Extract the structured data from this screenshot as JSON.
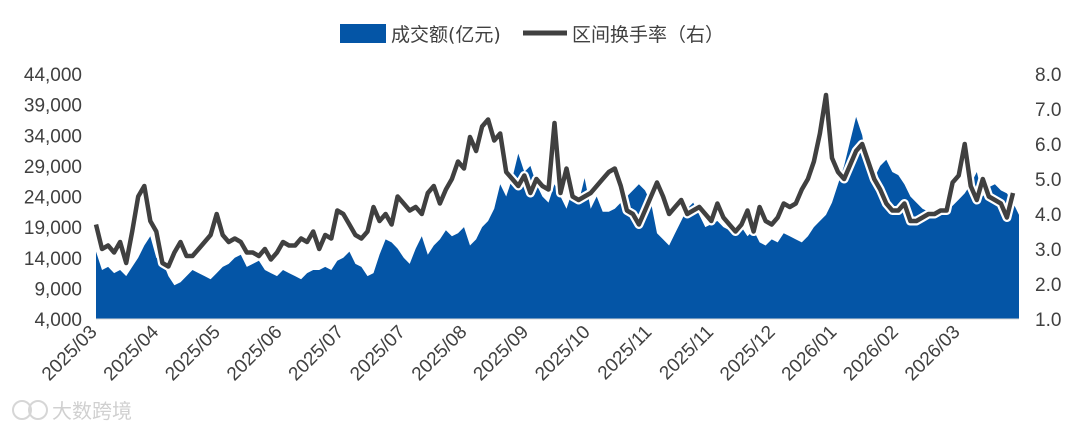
{
  "chart_data": {
    "type": "area",
    "legend": {
      "position": "top",
      "entries": [
        {
          "label": "成交额(亿元)",
          "color": "#0455A6",
          "kind": "area"
        },
        {
          "label": "区间换手率（右）",
          "color": "#404040",
          "kind": "line"
        }
      ]
    },
    "y_left": {
      "min": 4000,
      "max": 44000,
      "ticks": [
        "4,000",
        "9,000",
        "14,000",
        "19,000",
        "24,000",
        "29,000",
        "34,000",
        "39,000",
        "44,000"
      ]
    },
    "y_right": {
      "min": 1.0,
      "max": 8.0,
      "ticks": [
        "1.0",
        "2.0",
        "3.0",
        "4.0",
        "5.0",
        "6.0",
        "7.0",
        "8.0"
      ]
    },
    "x_ticks": [
      "2025/03",
      "2025/04",
      "2025/05",
      "2025/06",
      "2025/07",
      "2025/07",
      "2025/08",
      "2025/09",
      "2025/10",
      "2025/11",
      "2025/11",
      "2025/12",
      "2026/01",
      "2026/02",
      "2026/03"
    ],
    "grid": false,
    "series": [
      {
        "name": "成交额(亿元)",
        "axis": "left",
        "values": [
          15000,
          12000,
          12500,
          11500,
          12000,
          11000,
          12500,
          14000,
          16000,
          17500,
          14000,
          13500,
          11000,
          9500,
          10000,
          11000,
          12000,
          11500,
          11000,
          10500,
          11500,
          12500,
          13000,
          14000,
          14500,
          12500,
          13000,
          13500,
          12000,
          11500,
          11000,
          12000,
          11500,
          11000,
          10500,
          11500,
          12000,
          12000,
          12500,
          12000,
          13500,
          14000,
          15000,
          13000,
          12500,
          11000,
          11500,
          14500,
          17000,
          16500,
          15500,
          14000,
          13000,
          15500,
          17500,
          14500,
          16000,
          17000,
          18500,
          17500,
          18000,
          19000,
          16000,
          17000,
          19000,
          20000,
          22000,
          26000,
          24000,
          27000,
          31000,
          28000,
          29000,
          26000,
          24000,
          23000,
          26000,
          24000,
          22000,
          25000,
          23000,
          27000,
          22000,
          24000,
          21500,
          21500,
          22000,
          23000,
          24000,
          25000,
          26000,
          25000,
          23000,
          18000,
          17000,
          16000,
          18000,
          20000,
          22000,
          23000,
          21000,
          19000,
          19500,
          20000,
          19000,
          18500,
          18000,
          19000,
          17500,
          18500,
          16500,
          16000,
          17000,
          16500,
          18000,
          17500,
          17000,
          16500,
          17500,
          19000,
          20000,
          21000,
          23000,
          26000,
          29000,
          33000,
          37000,
          34000,
          28000,
          27000,
          29000,
          30000,
          28000,
          27500,
          26000,
          24000,
          23000,
          22000,
          21500,
          21000,
          21500,
          22000,
          22500,
          23500,
          24500,
          26000,
          28000,
          24000,
          25500,
          26000,
          25000,
          24500,
          23000,
          21000
        ]
      },
      {
        "name": "区间换手率（右）",
        "axis": "right",
        "values": [
          3.7,
          3.0,
          3.1,
          2.9,
          3.2,
          2.6,
          3.5,
          4.5,
          4.8,
          3.8,
          3.5,
          2.6,
          2.5,
          2.9,
          3.2,
          2.8,
          2.8,
          3.0,
          3.2,
          3.4,
          4.0,
          3.4,
          3.2,
          3.3,
          3.2,
          2.9,
          2.9,
          2.8,
          3.0,
          2.7,
          2.9,
          3.2,
          3.1,
          3.1,
          3.3,
          3.2,
          3.5,
          3.0,
          3.4,
          3.3,
          4.1,
          4.0,
          3.7,
          3.4,
          3.3,
          3.5,
          4.2,
          3.8,
          4.0,
          3.7,
          4.5,
          4.3,
          4.1,
          4.2,
          4.0,
          4.6,
          4.8,
          4.3,
          4.7,
          5.0,
          5.5,
          5.3,
          6.2,
          5.8,
          6.5,
          6.7,
          6.1,
          6.3,
          5.2,
          5.0,
          4.8,
          5.1,
          4.6,
          5.0,
          4.8,
          4.7,
          6.6,
          4.6,
          5.3,
          4.5,
          4.4,
          4.5,
          4.6,
          4.8,
          5.0,
          5.2,
          5.3,
          4.8,
          4.1,
          4.0,
          3.7,
          4.1,
          4.5,
          4.9,
          4.5,
          4.0,
          4.2,
          4.4,
          4.0,
          4.1,
          4.2,
          4.0,
          3.8,
          4.3,
          3.9,
          3.7,
          3.5,
          3.7,
          4.1,
          3.5,
          4.2,
          3.8,
          3.7,
          3.9,
          4.3,
          4.2,
          4.3,
          4.7,
          5.0,
          5.5,
          6.3,
          7.4,
          5.6,
          5.2,
          5.0,
          5.4,
          5.8,
          6.0,
          5.5,
          5.0,
          4.7,
          4.3,
          4.1,
          4.1,
          4.3,
          3.8,
          3.8,
          3.9,
          4.0,
          4.0,
          4.1,
          4.1,
          4.9,
          5.1,
          6.0,
          4.8,
          4.4,
          5.0,
          4.5,
          4.4,
          4.3,
          3.9,
          4.6
        ]
      }
    ]
  },
  "watermark": "大数跨境",
  "colors": {
    "area": "#0455A6",
    "line": "#404040",
    "text": "#404040"
  }
}
